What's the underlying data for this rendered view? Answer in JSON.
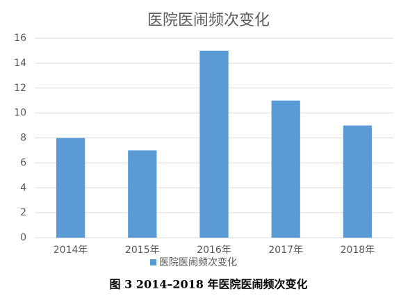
{
  "chart_data": {
    "type": "bar",
    "title": "医院医闹频次变化",
    "categories": [
      "2014年",
      "2015年",
      "2016年",
      "2017年",
      "2018年"
    ],
    "series": [
      {
        "name": "医院医闹频次变化",
        "color": "#5b9bd5",
        "values": [
          8,
          7,
          15,
          11,
          9
        ]
      }
    ],
    "ylim": [
      0,
      16
    ],
    "yticks": [
      0,
      2,
      4,
      6,
      8,
      10,
      12,
      14,
      16
    ],
    "grid": true,
    "legend": "bottom",
    "caption": "图 3  2014–2018 年医院医闹频次变化"
  }
}
